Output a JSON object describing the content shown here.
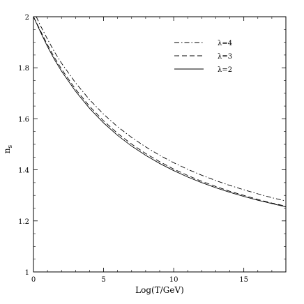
{
  "chart_data": {
    "type": "line",
    "xlabel": "Log(T/GeV)",
    "ylabel": "n",
    "ylabel_subscript": "s",
    "xlim": [
      0,
      18
    ],
    "ylim": [
      1,
      2
    ],
    "x_ticks": [
      "0",
      "5",
      "10",
      "15"
    ],
    "y_ticks": [
      "1",
      "1.2",
      "1.4",
      "1.6",
      "1.8",
      "2"
    ],
    "grid": false,
    "legend_position": "top-right",
    "series": [
      {
        "name": "λ=4",
        "style": "dash-dot",
        "x": [
          0.2,
          0.5,
          1,
          1.5,
          2,
          3,
          4,
          5,
          6,
          7,
          8,
          9,
          10,
          11,
          12,
          13,
          14,
          15,
          16,
          17,
          18
        ],
        "y": [
          2.0,
          1.965,
          1.912,
          1.862,
          1.818,
          1.741,
          1.675,
          1.618,
          1.569,
          1.527,
          1.49,
          1.457,
          1.428,
          1.402,
          1.379,
          1.358,
          1.339,
          1.322,
          1.306,
          1.291,
          1.278
        ]
      },
      {
        "name": "λ=3",
        "style": "dashed",
        "x": [
          0,
          0.5,
          1,
          1.5,
          2,
          3,
          4,
          5,
          6,
          7,
          8,
          9,
          10,
          11,
          12,
          13,
          14,
          15,
          16,
          17,
          18
        ],
        "y": [
          2.0,
          1.945,
          1.89,
          1.84,
          1.795,
          1.716,
          1.649,
          1.592,
          1.543,
          1.501,
          1.464,
          1.432,
          1.403,
          1.378,
          1.355,
          1.335,
          1.316,
          1.3,
          1.284,
          1.27,
          1.258
        ]
      },
      {
        "name": "λ=2",
        "style": "solid",
        "x": [
          0,
          0.5,
          1,
          1.5,
          2,
          3,
          4,
          5,
          6,
          7,
          8,
          9,
          10,
          11,
          12,
          13,
          14,
          15,
          16,
          17,
          18
        ],
        "y": [
          2.0,
          1.94,
          1.883,
          1.832,
          1.787,
          1.708,
          1.641,
          1.584,
          1.535,
          1.493,
          1.457,
          1.425,
          1.397,
          1.372,
          1.35,
          1.33,
          1.312,
          1.296,
          1.281,
          1.268,
          1.255
        ]
      }
    ]
  }
}
